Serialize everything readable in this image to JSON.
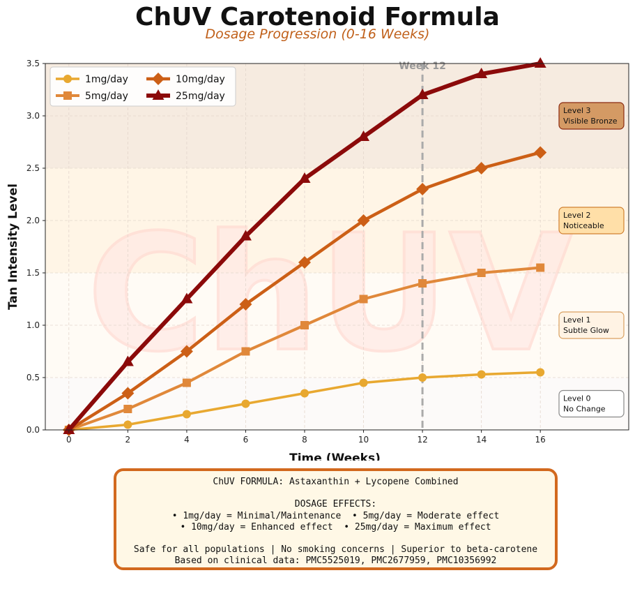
{
  "chart_data": {
    "type": "line",
    "title": "ChUV Carotenoid Formula",
    "subtitle": "Dosage Progression (0-16 Weeks)",
    "xlabel": "Time (Weeks)",
    "ylabel": "Tan Intensity Level",
    "xlim": [
      -0.8,
      19
    ],
    "ylim": [
      0,
      3.5
    ],
    "xticks": [
      0,
      2,
      4,
      6,
      8,
      10,
      12,
      14,
      16
    ],
    "yticks": [
      "0.0",
      "0.5",
      "1.0",
      "1.5",
      "2.0",
      "2.5",
      "3.0",
      "3.5"
    ],
    "grid": true,
    "legend_position": "top-left",
    "watermark": "ChUV",
    "x": [
      0,
      2,
      4,
      6,
      8,
      10,
      12,
      14,
      16
    ],
    "series": [
      {
        "name": "1mg/day",
        "marker": "circle",
        "color": "#e8a830",
        "values": [
          0,
          0.05,
          0.15,
          0.25,
          0.35,
          0.45,
          0.5,
          0.53,
          0.55
        ]
      },
      {
        "name": "5mg/day",
        "marker": "square",
        "color": "#e0883a",
        "values": [
          0,
          0.2,
          0.45,
          0.75,
          1.0,
          1.25,
          1.4,
          1.5,
          1.55
        ]
      },
      {
        "name": "10mg/day",
        "marker": "diamond",
        "color": "#cc5f16",
        "values": [
          0,
          0.35,
          0.75,
          1.2,
          1.6,
          2.0,
          2.3,
          2.5,
          2.65
        ]
      },
      {
        "name": "25mg/day",
        "marker": "triangle",
        "color": "#8b0a0a",
        "values": [
          0,
          0.65,
          1.25,
          1.85,
          2.4,
          2.8,
          3.2,
          3.4,
          3.5
        ]
      }
    ],
    "vline": {
      "x": 12,
      "label": "Week 12",
      "color": "#aaaaaa"
    },
    "bands": [
      {
        "from": 0,
        "to": 0.5,
        "color": "#fcfaf9"
      },
      {
        "from": 0.5,
        "to": 1.5,
        "color": "#fffbf5"
      },
      {
        "from": 1.5,
        "to": 2.5,
        "color": "#fff5e6"
      },
      {
        "from": 2.5,
        "to": 3.5,
        "color": "#f6ebe0"
      }
    ],
    "levels": [
      {
        "y": 0.25,
        "line1": "Level 0",
        "line2": "No Change",
        "bg": "#ffffff",
        "border": "#888888"
      },
      {
        "y": 1.0,
        "line1": "Level 1",
        "line2": "Subtle Glow",
        "bg": "#fff3e4",
        "border": "#d9a060"
      },
      {
        "y": 2.0,
        "line1": "Level 2",
        "line2": "Noticeable",
        "bg": "#ffdfa8",
        "border": "#d08030"
      },
      {
        "y": 3.0,
        "line1": "Level 3",
        "line2": "Visible Bronze",
        "bg": "#d49a64",
        "border": "#8b2a10"
      }
    ]
  },
  "infobox": {
    "lines": [
      "ChUV FORMULA: Astaxanthin + Lycopene Combined",
      "",
      "DOSAGE EFFECTS:",
      "• 1mg/day = Minimal/Maintenance  • 5mg/day = Moderate effect",
      "• 10mg/day = Enhanced effect  • 25mg/day = Maximum effect",
      "",
      "Safe for all populations | No smoking concerns | Superior to beta-carotene",
      "Based on clinical data: PMC5525019, PMC2677959, PMC10356992"
    ]
  }
}
